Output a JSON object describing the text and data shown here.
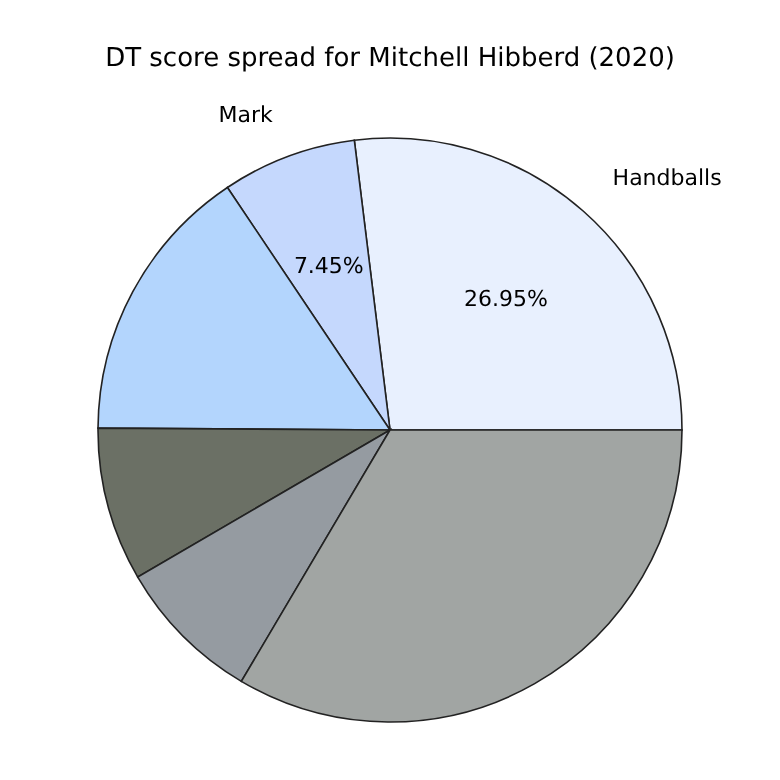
{
  "chart_data": {
    "type": "pie",
    "title": "DT score spread for Mitchell Hibberd (2020)",
    "categories": [
      "Handballs",
      "Mark",
      null,
      null,
      null,
      null
    ],
    "values": [
      26.95,
      7.45,
      15.5,
      8.5,
      8.1,
      33.5
    ],
    "colors": [
      "#e8f0fe",
      "#c5d8fd",
      "#b3d5fd",
      "#6b7065",
      "#959ba1",
      "#a1a5a3"
    ],
    "value_labels": [
      "26.95%",
      "7.45%",
      null,
      null,
      null,
      null
    ],
    "legend": false
  }
}
